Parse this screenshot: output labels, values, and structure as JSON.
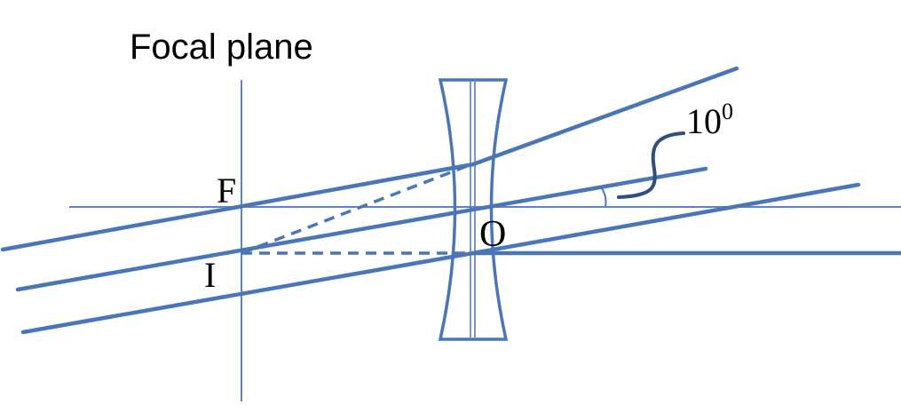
{
  "title": "Focal plane",
  "labels": {
    "focus": "F",
    "image": "I",
    "optical_center": "O",
    "angle_value": "10",
    "angle_unit": "0"
  },
  "colors": {
    "rays": "#4A76B8",
    "axis": "#5B86C5",
    "angle_leader": "#2F4F7F",
    "text": "#000000",
    "background": "#FFFFFF"
  }
}
